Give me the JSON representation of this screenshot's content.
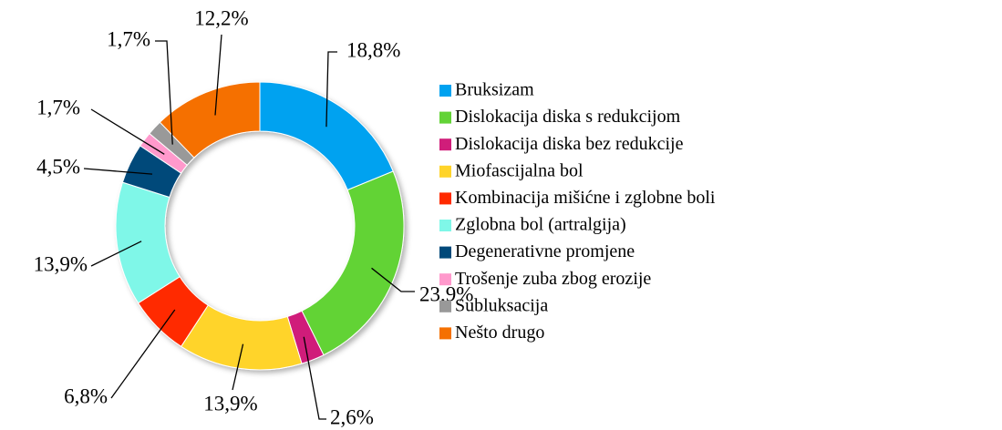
{
  "chart_data": {
    "type": "donut",
    "categories": [
      "Bruksizam",
      "Dislokacija diska s redukcijom",
      "Dislokacija diska bez redukcije",
      "Miofascijalna bol",
      "Kombinacija mišićne i zglobne boli",
      "Zglobna bol (artralgija)",
      "Degenerativne promjene",
      "Trošenje zuba zbog erozije",
      "Subluksacija",
      "Nešto drugo"
    ],
    "values": [
      18.8,
      23.9,
      2.6,
      13.9,
      6.8,
      13.9,
      4.5,
      1.7,
      1.7,
      12.2
    ],
    "value_labels": [
      "18,8%",
      "23,9%",
      "2,6%",
      "13,9%",
      "6,8%",
      "13,9%",
      "4,5%",
      "1,7%",
      "1,7%",
      "12,2%"
    ],
    "colors": [
      "#00a2f0",
      "#62d336",
      "#d01d7a",
      "#ffd42a",
      "#ff2a00",
      "#7ff7e8",
      "#00497a",
      "#ff99cc",
      "#999999",
      "#f57000"
    ],
    "legend": "right"
  }
}
